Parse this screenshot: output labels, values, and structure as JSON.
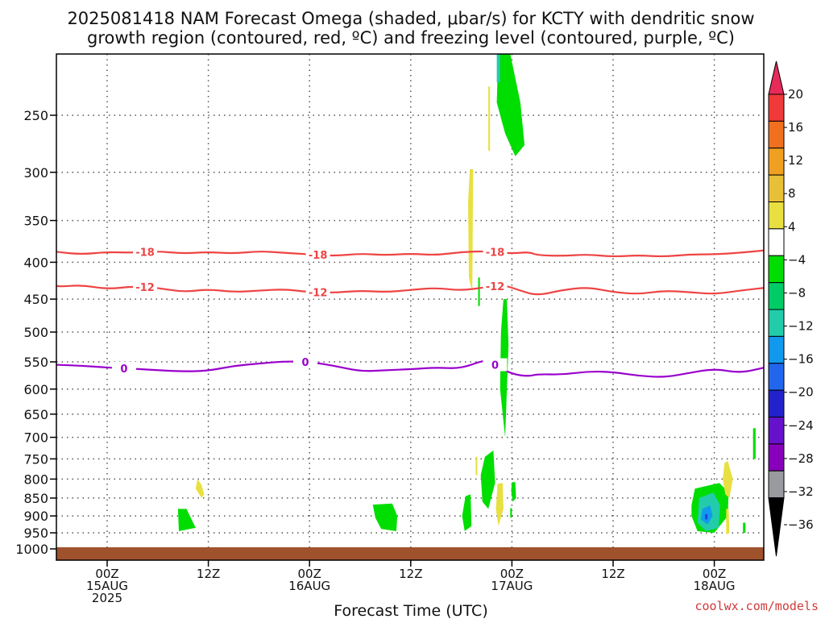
{
  "chart_data": {
    "type": "time-height",
    "title_line1": "2025081418 NAM Forecast Omega (shaded, μbar/s) for KCTY with dendritic snow",
    "title_line2": "growth region (contoured, red, ºC) and freezing level (contoured, purple, ºC)",
    "xlabel": "Forecast Time (UTC)",
    "credit": "coolwx.com/models",
    "y_ticks": [
      250,
      300,
      350,
      400,
      450,
      500,
      550,
      600,
      650,
      700,
      750,
      800,
      850,
      900,
      950,
      1000
    ],
    "y_range_hPa": [
      200,
      1020
    ],
    "y_scale": "log-pressure, inverted",
    "x_range_hours": [
      -10,
      60
    ],
    "x_ticks": [
      {
        "hour": 6,
        "line1": "00Z",
        "line2": "15AUG",
        "line3": "2025"
      },
      {
        "hour": 18,
        "line1": "12Z",
        "line2": "",
        "line3": ""
      },
      {
        "hour": 30,
        "line1": "00Z",
        "line2": "16AUG",
        "line3": ""
      },
      {
        "hour": 42,
        "line1": "12Z",
        "line2": "",
        "line3": ""
      },
      {
        "hour": 54,
        "line1": "00Z",
        "line2": "17AUG",
        "line3": ""
      },
      {
        "hour": 66,
        "line1": "12Z",
        "line2": "",
        "line3": ""
      },
      {
        "hour": 78,
        "line1": "00Z",
        "line2": "18AUG",
        "line3": ""
      }
    ],
    "contours": [
      {
        "label": "-18",
        "color": "#ee4444",
        "label_hours": [
          10.5,
          31.0,
          52.0
        ],
        "points": [
          [
            -10,
            390
          ],
          [
            -6,
            386
          ],
          [
            -3,
            382
          ],
          [
            0,
            387
          ],
          [
            3,
            390
          ],
          [
            6,
            387
          ],
          [
            9,
            388
          ],
          [
            12,
            386
          ],
          [
            15,
            389
          ],
          [
            18,
            387
          ],
          [
            21,
            389
          ],
          [
            24,
            386
          ],
          [
            27,
            388
          ],
          [
            30,
            390
          ],
          [
            33,
            392
          ],
          [
            36,
            389
          ],
          [
            39,
            391
          ],
          [
            42,
            389
          ],
          [
            45,
            391
          ],
          [
            48,
            387
          ],
          [
            51,
            386
          ],
          [
            54,
            389
          ],
          [
            56,
            387
          ],
          [
            57,
            391
          ],
          [
            60,
            392
          ],
          [
            63,
            390
          ],
          [
            66,
            393
          ],
          [
            69,
            391
          ],
          [
            72,
            393
          ],
          [
            75,
            390
          ],
          [
            78,
            390
          ],
          [
            81,
            388
          ],
          [
            84,
            385
          ]
        ]
      },
      {
        "label": "-12",
        "color": "#ee4444",
        "label_hours": [
          10.5,
          31.0,
          52.0
        ],
        "points": [
          [
            -10,
            437
          ],
          [
            -7,
            432
          ],
          [
            -3,
            425
          ],
          [
            0,
            433
          ],
          [
            3,
            430
          ],
          [
            6,
            436
          ],
          [
            9,
            432
          ],
          [
            12,
            434
          ],
          [
            15,
            440
          ],
          [
            18,
            436
          ],
          [
            21,
            440
          ],
          [
            24,
            438
          ],
          [
            27,
            436
          ],
          [
            30,
            440
          ],
          [
            33,
            441
          ],
          [
            36,
            438
          ],
          [
            39,
            440
          ],
          [
            42,
            437
          ],
          [
            45,
            434
          ],
          [
            48,
            438
          ],
          [
            51,
            433
          ],
          [
            53,
            430
          ],
          [
            55,
            438
          ],
          [
            57,
            445
          ],
          [
            60,
            437
          ],
          [
            63,
            433
          ],
          [
            66,
            440
          ],
          [
            69,
            443
          ],
          [
            72,
            438
          ],
          [
            75,
            440
          ],
          [
            78,
            443
          ],
          [
            81,
            438
          ],
          [
            84,
            434
          ]
        ]
      },
      {
        "label": "0",
        "color": "#9900cc",
        "label_hours": [
          8.0,
          29.5,
          52.0
        ],
        "points": [
          [
            -10,
            565
          ],
          [
            -7,
            563
          ],
          [
            -4,
            553
          ],
          [
            0,
            555
          ],
          [
            3,
            557
          ],
          [
            6,
            560
          ],
          [
            9,
            562
          ],
          [
            12,
            565
          ],
          [
            15,
            567
          ],
          [
            18,
            566
          ],
          [
            21,
            557
          ],
          [
            24,
            553
          ],
          [
            27,
            549
          ],
          [
            30,
            550
          ],
          [
            33,
            557
          ],
          [
            36,
            567
          ],
          [
            39,
            565
          ],
          [
            42,
            563
          ],
          [
            45,
            560
          ],
          [
            48,
            562
          ],
          [
            51,
            545
          ],
          [
            52,
            555
          ],
          [
            54,
            572
          ],
          [
            56,
            576
          ],
          [
            57,
            572
          ],
          [
            60,
            573
          ],
          [
            63,
            567
          ],
          [
            66,
            568
          ],
          [
            69,
            575
          ],
          [
            72,
            578
          ],
          [
            75,
            570
          ],
          [
            78,
            562
          ],
          [
            81,
            570
          ],
          [
            84,
            560
          ]
        ]
      }
    ],
    "shaded_regions": [
      {
        "color": "#00dd00",
        "points": [
          [
            52.4,
            200
          ],
          [
            53.6,
            200
          ],
          [
            55,
            240
          ],
          [
            55.5,
            275
          ],
          [
            54.4,
            285
          ],
          [
            53.2,
            265
          ],
          [
            52.2,
            240
          ]
        ]
      },
      {
        "color": "#22ccaa",
        "points": [
          [
            52.2,
            205
          ],
          [
            52.6,
            205
          ],
          [
            52.6,
            225
          ],
          [
            52.2,
            225
          ]
        ]
      },
      {
        "color": "#e8e040",
        "points": [
          [
            51.2,
            228
          ],
          [
            51.4,
            228
          ],
          [
            51.4,
            280
          ],
          [
            51.2,
            280
          ]
        ]
      },
      {
        "color": "#e8e040",
        "points": [
          [
            49.0,
            297
          ],
          [
            49.4,
            297
          ],
          [
            49.3,
            440
          ],
          [
            48.9,
            420
          ],
          [
            48.8,
            330
          ]
        ]
      },
      {
        "color": "#00dd00",
        "points": [
          [
            50.0,
            420
          ],
          [
            50.2,
            420
          ],
          [
            50.2,
            460
          ],
          [
            50.0,
            460
          ]
        ]
      },
      {
        "color": "#00dd00",
        "points": [
          [
            53.0,
            450
          ],
          [
            53.4,
            450
          ],
          [
            53.6,
            520
          ],
          [
            53.2,
            700
          ],
          [
            52.6,
            600
          ],
          [
            52.7,
            500
          ]
        ]
      },
      {
        "color": "#00dd00",
        "points": [
          [
            50.8,
            745
          ],
          [
            51.8,
            730
          ],
          [
            52.0,
            810
          ],
          [
            51.2,
            880
          ],
          [
            50.5,
            860
          ],
          [
            50.3,
            790
          ]
        ]
      },
      {
        "color": "#e8e040",
        "points": [
          [
            52.3,
            812
          ],
          [
            52.9,
            810
          ],
          [
            53.0,
            880
          ],
          [
            52.4,
            930
          ],
          [
            52.1,
            880
          ]
        ]
      },
      {
        "color": "#e8e040",
        "points": [
          [
            49.7,
            745
          ],
          [
            49.9,
            745
          ],
          [
            49.9,
            790
          ],
          [
            49.7,
            790
          ]
        ]
      },
      {
        "color": "#00dd00",
        "points": [
          [
            48.5,
            845
          ],
          [
            49.1,
            840
          ],
          [
            49.2,
            930
          ],
          [
            48.4,
            945
          ],
          [
            48.1,
            900
          ]
        ]
      },
      {
        "color": "#00dd00",
        "points": [
          [
            54.0,
            808
          ],
          [
            54.4,
            808
          ],
          [
            54.5,
            850
          ],
          [
            54.1,
            860
          ],
          [
            53.9,
            830
          ]
        ]
      },
      {
        "color": "#00dd00",
        "points": [
          [
            53.8,
            878
          ],
          [
            54.0,
            878
          ],
          [
            54.0,
            905
          ],
          [
            53.8,
            905
          ]
        ]
      },
      {
        "color": "#00dd00",
        "points": [
          [
            37.5,
            868
          ],
          [
            39.8,
            865
          ],
          [
            40.4,
            900
          ],
          [
            40.3,
            945
          ],
          [
            38.5,
            938
          ],
          [
            37.8,
            905
          ]
        ]
      },
      {
        "color": "#00dd00",
        "points": [
          [
            14.4,
            880
          ],
          [
            15.4,
            880
          ],
          [
            16.5,
            935
          ],
          [
            14.5,
            945
          ]
        ]
      },
      {
        "color": "#e8e040",
        "points": [
          [
            16.7,
            800
          ],
          [
            17.2,
            815
          ],
          [
            17.5,
            840
          ],
          [
            17.2,
            850
          ],
          [
            16.5,
            825
          ]
        ]
      },
      {
        "color": "#00dd00",
        "points": [
          [
            75.7,
            825
          ],
          [
            78.6,
            810
          ],
          [
            79.7,
            835
          ],
          [
            79.6,
            900
          ],
          [
            78.0,
            950
          ],
          [
            76.0,
            945
          ],
          [
            75.3,
            900
          ],
          [
            75.3,
            870
          ]
        ]
      },
      {
        "color": "#22ccaa",
        "points": [
          [
            76.2,
            850
          ],
          [
            77.9,
            835
          ],
          [
            78.7,
            870
          ],
          [
            78.5,
            935
          ],
          [
            77.0,
            945
          ],
          [
            76.0,
            920
          ]
        ]
      },
      {
        "color": "#1199ee",
        "points": [
          [
            76.6,
            880
          ],
          [
            77.5,
            870
          ],
          [
            77.8,
            900
          ],
          [
            77.2,
            925
          ],
          [
            76.4,
            910
          ]
        ]
      },
      {
        "color": "#2244dd",
        "points": [
          [
            76.9,
            895
          ],
          [
            77.2,
            895
          ],
          [
            77.2,
            910
          ],
          [
            76.9,
            910
          ]
        ]
      },
      {
        "color": "#e8e040",
        "points": [
          [
            79.2,
            760
          ],
          [
            79.6,
            755
          ],
          [
            80.2,
            800
          ],
          [
            79.8,
            850
          ],
          [
            79.3,
            840
          ],
          [
            79.0,
            800
          ]
        ]
      },
      {
        "color": "#e8e040",
        "points": [
          [
            79.4,
            880
          ],
          [
            79.7,
            880
          ],
          [
            79.8,
            950
          ],
          [
            79.4,
            955
          ]
        ]
      },
      {
        "color": "#00dd00",
        "points": [
          [
            81.4,
            920
          ],
          [
            81.7,
            920
          ],
          [
            81.7,
            950
          ],
          [
            81.4,
            950
          ]
        ]
      },
      {
        "color": "#00dd00",
        "points": [
          [
            82.6,
            680
          ],
          [
            82.9,
            680
          ],
          [
            82.9,
            750
          ],
          [
            82.6,
            750
          ]
        ]
      },
      {
        "color": "#e8e040",
        "points": [
          [
            84.3,
            640
          ],
          [
            84.8,
            545
          ],
          [
            84.9,
            800
          ],
          [
            83.9,
            800
          ],
          [
            84.0,
            740
          ]
        ]
      }
    ],
    "ground_color": "#a0522d",
    "colorbar": {
      "labels": [
        "20",
        "16",
        "12",
        "8",
        "4",
        "−4",
        "−8",
        "−12",
        "−16",
        "−20",
        "−24",
        "−28",
        "−32",
        "−36"
      ],
      "colors": [
        "#e82a5a",
        "#f03a3a",
        "#f07020",
        "#f0a020",
        "#e8c038",
        "#e8e040",
        "#ffffff",
        "#00dd00",
        "#00cc66",
        "#22ccaa",
        "#1199ee",
        "#2266ee",
        "#2222cc",
        "#6611cc",
        "#8800bb",
        "#9999a0",
        "#000000"
      ]
    }
  }
}
